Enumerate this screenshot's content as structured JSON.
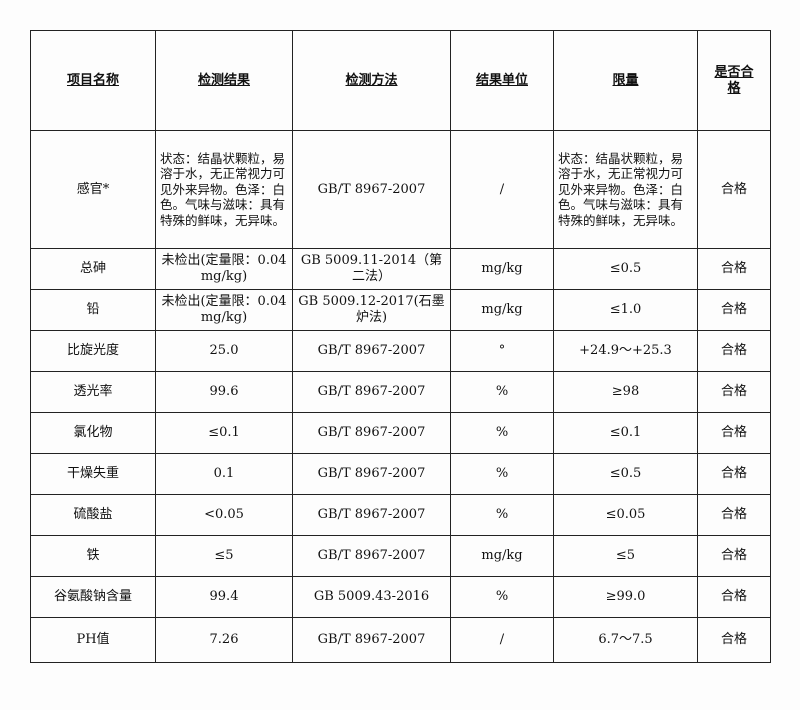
{
  "headers": [
    "项目名称",
    "检测结果",
    "检测方法",
    "结果单位",
    "限量",
    "是否合格"
  ],
  "rows": [
    {
      "item": "感官*",
      "result": "状态：结晶状颗粒，易溶于水，无正常视力可见外来异物。色泽：白色。气味与滋味：具有特殊的鲜味，无异味。",
      "method": "GB/T 8967-2007",
      "unit": "/",
      "limit": "状态：结晶状颗粒，易溶于水，无正常视力可见外来异物。色泽：白色。气味与滋味：具有特殊的鲜味，无异味。",
      "verdict": "合格"
    },
    {
      "item": "总砷",
      "result": "未检出(定量限：0.04 mg/kg)",
      "method": "GB 5009.11-2014（第二法）",
      "unit": "mg/kg",
      "limit": "≤0.5",
      "verdict": "合格"
    },
    {
      "item": "铅",
      "result": "未检出(定量限：0.04 mg/kg)",
      "method": "GB 5009.12-2017(石墨炉法)",
      "unit": "mg/kg",
      "limit": "≤1.0",
      "verdict": "合格"
    },
    {
      "item": "比旋光度",
      "result": "25.0",
      "method": "GB/T 8967-2007",
      "unit": "°",
      "limit": "+24.9～+25.3",
      "verdict": "合格"
    },
    {
      "item": "透光率",
      "result": "99.6",
      "method": "GB/T 8967-2007",
      "unit": "%",
      "limit": "≥98",
      "verdict": "合格"
    },
    {
      "item": "氯化物",
      "result": "≤0.1",
      "method": "GB/T 8967-2007",
      "unit": "%",
      "limit": "≤0.1",
      "verdict": "合格"
    },
    {
      "item": "干燥失重",
      "result": "0.1",
      "method": "GB/T 8967-2007",
      "unit": "%",
      "limit": "≤0.5",
      "verdict": "合格"
    },
    {
      "item": "硫酸盐",
      "result": "<0.05",
      "method": "GB/T 8967-2007",
      "unit": "%",
      "limit": "≤0.05",
      "verdict": "合格"
    },
    {
      "item": "铁",
      "result": "≤5",
      "method": "GB/T 8967-2007",
      "unit": "mg/kg",
      "limit": "≤5",
      "verdict": "合格"
    },
    {
      "item": "谷氨酸钠含量",
      "result": "99.4",
      "method": "GB 5009.43-2016",
      "unit": "%",
      "limit": "≥99.0",
      "verdict": "合格"
    },
    {
      "item": "PH值",
      "result": "7.26",
      "method": "GB/T 8967-2007",
      "unit": "/",
      "limit": "6.7～7.5",
      "verdict": "合格"
    }
  ]
}
